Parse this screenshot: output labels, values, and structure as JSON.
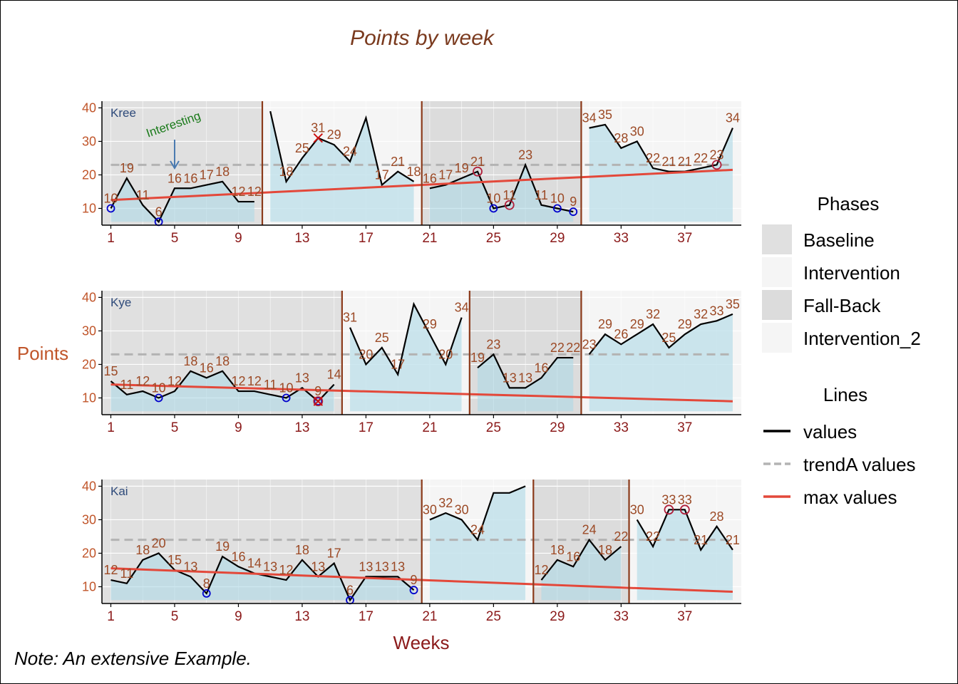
{
  "chart_data": {
    "type": "line",
    "title": "Points by week",
    "xlabel": "Weeks",
    "ylabel": "Points",
    "note": "Note: An extensive Example.",
    "ylim": [
      5,
      42
    ],
    "y_ticks": [
      10,
      20,
      30,
      40
    ],
    "x_ticks": [
      1,
      5,
      9,
      13,
      17,
      21,
      25,
      29,
      33,
      37
    ],
    "grid": true,
    "legend_position": "right",
    "colors": {
      "title": "#7a3a1e",
      "axis_tick_y": "#c0552a",
      "axis_tick_x": "#8b1a1a",
      "value_label": "#9c4a26",
      "case_label": "#2e4a7a",
      "values_line": "#000000",
      "trendA_line": "#b3b3b3",
      "max_line": "#e3483a",
      "phase_separator": "#8b3a1a",
      "area_fill": "#add8e6",
      "marker_min": "#0000cc",
      "marker_max": "#b01f3a",
      "annotation_text": "#1a7a1a",
      "annotation_arrow": "#4a7ab0",
      "bg_baseline": "#e0e0e0",
      "bg_intervention": "#f5f5f5",
      "bg_fallback": "#dcdcdc",
      "bg_intervention_2": "#f5f5f5"
    },
    "legend": {
      "phases_title": "Phases",
      "phases": [
        {
          "label": "Baseline",
          "color": "#e0e0e0"
        },
        {
          "label": "Intervention",
          "color": "#f5f5f5"
        },
        {
          "label": "Fall-Back",
          "color": "#dcdcdc"
        },
        {
          "label": "Intervention_2",
          "color": "#f5f5f5"
        }
      ],
      "lines_title": "Lines",
      "lines": [
        {
          "label": "values",
          "color": "#000000",
          "dash": "solid"
        },
        {
          "label": "trendA values",
          "color": "#b3b3b3",
          "dash": "dashed"
        },
        {
          "label": "max values",
          "color": "#e3483a",
          "dash": "solid"
        }
      ]
    },
    "panels": [
      {
        "case": "Kree",
        "phases": [
          {
            "name": "Baseline",
            "weeks": [
              1,
              10
            ]
          },
          {
            "name": "Intervention",
            "weeks": [
              11,
              20
            ]
          },
          {
            "name": "Fall-Back",
            "weeks": [
              21,
              30
            ]
          },
          {
            "name": "Intervention_2",
            "weeks": [
              31,
              40
            ]
          }
        ],
        "separators": [
          10.5,
          20.5,
          30.5
        ],
        "values": [
          10,
          19,
          11,
          6,
          16,
          16,
          17,
          18,
          12,
          12,
          39,
          18,
          25,
          31,
          29,
          24,
          37,
          17,
          21,
          18,
          16,
          17,
          19,
          21,
          10,
          11,
          23,
          11,
          10,
          9,
          34,
          35,
          28,
          30,
          22,
          21,
          21,
          22,
          23,
          34
        ],
        "labels_hidden_weeks": [
          11,
          17
        ],
        "trendA": 23,
        "max_line": [
          12.5,
          21.5
        ],
        "min_markers": [
          1,
          4,
          25,
          29,
          30
        ],
        "max_circle_markers": [
          24,
          26,
          39
        ],
        "x_markers": [
          14
        ],
        "annotation": {
          "text": "Interesting",
          "week": 5
        }
      },
      {
        "case": "Kye",
        "phases": [
          {
            "name": "Baseline",
            "weeks": [
              1,
              15
            ]
          },
          {
            "name": "Intervention",
            "weeks": [
              16,
              23
            ]
          },
          {
            "name": "Fall-Back",
            "weeks": [
              24,
              30
            ]
          },
          {
            "name": "Intervention_2",
            "weeks": [
              31,
              40
            ]
          }
        ],
        "separators": [
          15.5,
          23.5,
          30.5
        ],
        "values": [
          15,
          11,
          12,
          10,
          12,
          18,
          16,
          18,
          12,
          12,
          11,
          10,
          13,
          9,
          14,
          31,
          20,
          25,
          17,
          38,
          29,
          20,
          34,
          19,
          23,
          13,
          13,
          16,
          22,
          22,
          23,
          29,
          26,
          29,
          32,
          25,
          29,
          32,
          33,
          35
        ],
        "labels_hidden_weeks": [
          20
        ],
        "trendA": 23,
        "max_line": [
          14,
          9
        ],
        "min_markers": [
          4,
          12,
          14
        ],
        "max_circle_markers": [
          14
        ],
        "x_markers": [
          14
        ],
        "annotation": null
      },
      {
        "case": "Kai",
        "phases": [
          {
            "name": "Baseline",
            "weeks": [
              1,
              20
            ]
          },
          {
            "name": "Intervention",
            "weeks": [
              21,
              27
            ]
          },
          {
            "name": "Fall-Back",
            "weeks": [
              28,
              33
            ]
          },
          {
            "name": "Intervention_2",
            "weeks": [
              34,
              40
            ]
          }
        ],
        "separators": [
          20.5,
          27.5,
          33.5
        ],
        "values": [
          12,
          11,
          18,
          20,
          15,
          13,
          8,
          19,
          16,
          14,
          13,
          12,
          18,
          13,
          17,
          6,
          13,
          13,
          13,
          9,
          30,
          32,
          30,
          24,
          38,
          38,
          40,
          12,
          18,
          16,
          24,
          18,
          22,
          30,
          22,
          33,
          33,
          21,
          28,
          21
        ],
        "labels_hidden_weeks": [
          25,
          26,
          27
        ],
        "trendA": 24,
        "max_line": [
          15.5,
          8.5
        ],
        "min_markers": [
          7,
          16,
          20
        ],
        "max_circle_markers": [
          36,
          37
        ],
        "x_markers": [],
        "annotation": null
      }
    ]
  }
}
